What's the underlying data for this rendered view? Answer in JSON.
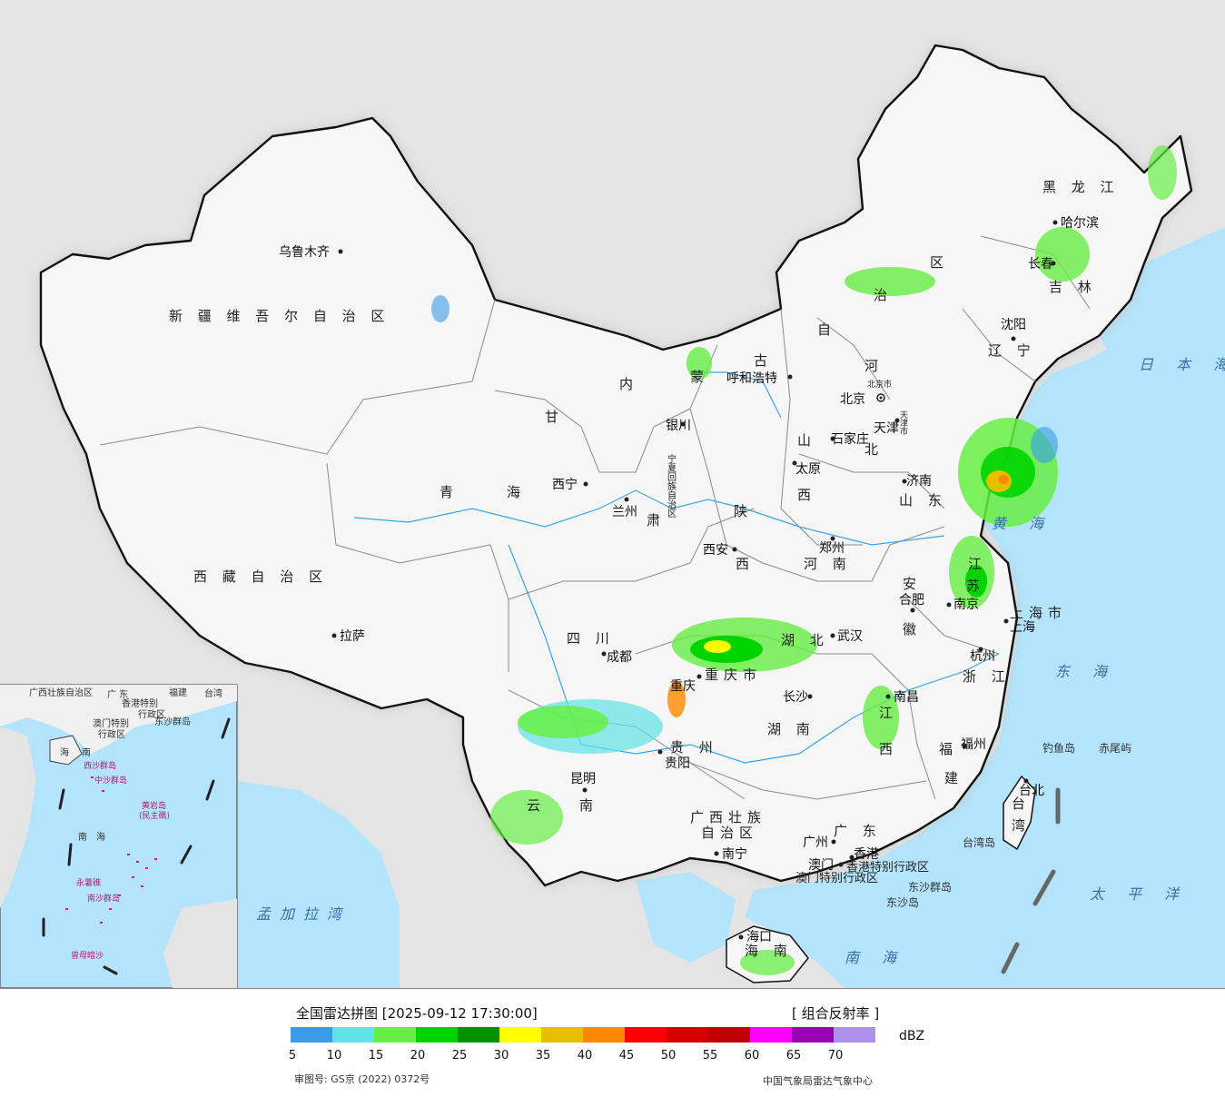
{
  "legend": {
    "title": "全国雷达拼图 [2025-09-12 17:30:00]",
    "product": "[ 组合反射率 ]",
    "unit": "dBZ",
    "ticks": [
      "5",
      "10",
      "15",
      "20",
      "25",
      "30",
      "35",
      "40",
      "45",
      "50",
      "55",
      "60",
      "65",
      "70"
    ],
    "colors": [
      "#3a9be8",
      "#5fe3e6",
      "#66ee44",
      "#00d400",
      "#009200",
      "#ffff00",
      "#e6c000",
      "#ff8800",
      "#ff0000",
      "#d40000",
      "#c00000",
      "#ff00ff",
      "#9a00b4",
      "#ad90f0"
    ],
    "approval": "审图号: GS京 (2022) 0372号",
    "source": "中国气象局雷达气象中心"
  },
  "colors": {
    "sea": "#b3e4fb",
    "foreign_land": "#e4e4e4",
    "china_land": "#f6f6f6",
    "border": "#111111",
    "province_border": "#8a8a8a"
  },
  "provinces": {
    "xinjiang": "新 疆 维 吾 尔 自 治 区",
    "tibet": "西 藏 自 治 区",
    "qinghai1": "青",
    "qinghai2": "海",
    "gansu1": "甘",
    "gansu2": "肃",
    "inner1": "内",
    "inner2": "蒙",
    "inner3": "古",
    "inner4": "自",
    "inner5": "治",
    "inner6": "区",
    "ningxia": "宁夏回族自治区",
    "shaanxi1": "陕",
    "shaanxi2": "西",
    "shanxi1": "山",
    "shanxi2": "西",
    "hebei1": "河",
    "hebei2": "北",
    "heilongjiang": "黑 龙 江",
    "jilin": "吉 林",
    "liaoning": "辽 宁",
    "shandong": "山 东",
    "henan": "河 南",
    "jiangsu1": "江",
    "jiangsu2": "苏",
    "anhui1": "安",
    "anhui2": "徽",
    "hubei": "湖 北",
    "hunan": "湖 南",
    "jiangxi1": "江",
    "jiangxi2": "西",
    "zhejiang": "浙 江",
    "fujian1": "福",
    "fujian2": "建",
    "sichuan": "四 川",
    "chongqing": "重庆市",
    "guizhou": "贵 州",
    "yunnan1": "云",
    "yunnan2": "南",
    "guangxi1": "广西壮族",
    "guangxi2": "自治区",
    "guangdong": "广 东",
    "hainan": "海 南",
    "shanghai": "上海市",
    "beijing": "北京市",
    "tianjin": "天津市",
    "taiwan1": "台",
    "taiwan2": "湾",
    "hk": "香港特别行政区",
    "macao": "澳门特别行政区",
    "gansu_city_lanzhou": "兰州"
  },
  "cities": {
    "urumqi": "乌鲁木齐",
    "lhasa": "拉萨",
    "xining": "西宁",
    "lanzhou": "兰州",
    "yinchuan": "银川",
    "hohhot": "呼和浩特",
    "beijing": "北京",
    "tianjin": "天津",
    "shijiazhuang": "石家庄",
    "taiyuan": "太原",
    "xian": "西安",
    "zhengzhou": "郑州",
    "jinan": "济南",
    "shenyang": "沈阳",
    "changchun": "长春",
    "harbin": "哈尔滨",
    "chengdu": "成都",
    "chongqing": "重庆",
    "wuhan": "武汉",
    "hefei": "合肥",
    "nanjing": "南京",
    "shanghai": "上海",
    "hangzhou": "杭州",
    "nanchang": "南昌",
    "changsha": "长沙",
    "guiyang": "贵阳",
    "kunming": "昆明",
    "nanning": "南宁",
    "guangzhou": "广州",
    "aomen": "澳门",
    "xianggang": "香港",
    "fuzhou": "福州",
    "taibei": "台北",
    "haikou": "海口"
  },
  "seas": {
    "japan_sea": "日 本 海",
    "yellow_sea": "黄 海",
    "east_sea": "东 海",
    "pacific": "太 平 洋",
    "south_sea": "南 海",
    "bengal": "孟加拉湾"
  },
  "islands": {
    "diaoyu": "钓鱼岛",
    "chiwei": "赤尾屿",
    "taiwan_island": "台湾岛",
    "dongsha_group": "东沙群岛",
    "dongsha_island": "东沙岛"
  },
  "inset": {
    "xisha": "西沙群岛",
    "zhongsha": "中沙群岛",
    "huangyan": "黄岩岛",
    "minzhu": "(民主礁)",
    "nansha": "南沙群岛",
    "yongshu": "永暑礁",
    "zengmu": "曾母暗沙",
    "dongsha": "东沙群岛",
    "sea1": "南",
    "sea2": "海",
    "hainan1": "海",
    "hainan2": "南",
    "guangxi": "广西壮族自治区",
    "guangdong": "广 东",
    "fujian": "福建",
    "taiwan": "台湾",
    "hkmo1": "香港特别",
    "hkmo2": "行政区",
    "hkmo3": "澳门特别",
    "hkmo4": "行政区"
  }
}
